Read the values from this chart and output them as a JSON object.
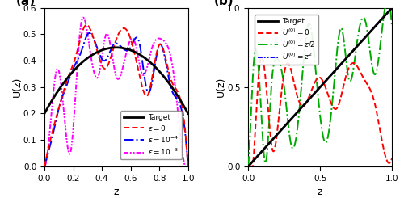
{
  "fig_width": 5.0,
  "fig_height": 2.45,
  "dpi": 100,
  "panel_a": {
    "label": "(a)",
    "xlabel": "z",
    "ylabel": "U(z)",
    "xlim": [
      0.0,
      1.0
    ],
    "ylim": [
      0.0,
      0.6
    ],
    "yticks": [
      0.0,
      0.1,
      0.2,
      0.3,
      0.4,
      0.5,
      0.6
    ],
    "xticks": [
      0.0,
      0.2,
      0.4,
      0.6,
      0.8,
      1.0
    ],
    "target_color": "#000000",
    "target_lw": 2.0,
    "eps0_color": "#ff0000",
    "eps4_color": "#0000ff",
    "eps3_color": "#ff00ff"
  },
  "panel_b": {
    "label": "(b)",
    "xlabel": "z",
    "ylabel": "U(z)",
    "xlim": [
      0.0,
      1.0
    ],
    "ylim": [
      0.0,
      1.0
    ],
    "yticks": [
      0.0,
      0.5,
      1.0
    ],
    "xticks": [
      0.0,
      0.5,
      1.0
    ],
    "target_color": "#000000",
    "target_lw": 2.0,
    "u0_color": "#ff0000",
    "uz2_color": "#00aa00",
    "uz2sq_color": "#0000ff"
  }
}
